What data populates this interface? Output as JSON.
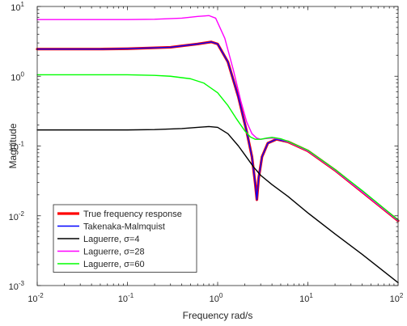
{
  "chart_data": {
    "type": "line",
    "title": "",
    "xlabel": "Frequency rad/s",
    "ylabel": "Magnitude",
    "xscale": "log",
    "yscale": "log",
    "xlim": [
      0.01,
      100
    ],
    "ylim": [
      0.001,
      10
    ],
    "grid": false,
    "legend_position": "bottom-left",
    "x_tick_labels": [
      {
        "base": "10",
        "exp": "-2"
      },
      {
        "base": "10",
        "exp": "-1"
      },
      {
        "base": "10",
        "exp": "0"
      },
      {
        "base": "10",
        "exp": "1"
      },
      {
        "base": "10",
        "exp": "2"
      }
    ],
    "y_tick_labels": [
      {
        "base": "10",
        "exp": "-3"
      },
      {
        "base": "10",
        "exp": "-2"
      },
      {
        "base": "10",
        "exp": "-1"
      },
      {
        "base": "10",
        "exp": "0"
      },
      {
        "base": "10",
        "exp": "1"
      }
    ],
    "series": [
      {
        "name": "True frequency response",
        "color": "#ff0000",
        "x": [
          0.01,
          0.05,
          0.1,
          0.3,
          0.6,
          0.85,
          1.0,
          1.3,
          1.7,
          2.1,
          2.4,
          2.6,
          2.72,
          2.85,
          3.1,
          3.6,
          4.5,
          6,
          10,
          20,
          40,
          100
        ],
        "y": [
          2.45,
          2.45,
          2.48,
          2.6,
          2.9,
          3.1,
          2.9,
          1.6,
          0.5,
          0.16,
          0.07,
          0.03,
          0.017,
          0.035,
          0.07,
          0.11,
          0.125,
          0.115,
          0.085,
          0.045,
          0.022,
          0.0085
        ]
      },
      {
        "name": "Takenaka-Malmquist",
        "color": "#0000ff",
        "x": [
          0.01,
          0.05,
          0.1,
          0.3,
          0.6,
          0.85,
          1.0,
          1.3,
          1.7,
          2.1,
          2.4,
          2.6,
          2.72,
          2.85,
          3.1,
          3.6,
          4.5,
          6,
          10,
          20,
          40,
          100
        ],
        "y": [
          2.45,
          2.45,
          2.48,
          2.6,
          2.9,
          3.1,
          2.9,
          1.6,
          0.5,
          0.16,
          0.07,
          0.03,
          0.017,
          0.035,
          0.07,
          0.11,
          0.125,
          0.115,
          0.085,
          0.045,
          0.022,
          0.0085
        ]
      },
      {
        "name": "Laguerre, σ=4",
        "color": "#000000",
        "x": [
          0.01,
          0.05,
          0.1,
          0.2,
          0.4,
          0.6,
          0.8,
          1.0,
          1.3,
          1.7,
          2.0,
          2.5,
          3,
          4,
          6,
          10,
          20,
          40,
          100
        ],
        "y": [
          0.17,
          0.17,
          0.17,
          0.172,
          0.178,
          0.185,
          0.19,
          0.185,
          0.15,
          0.1,
          0.075,
          0.05,
          0.038,
          0.028,
          0.019,
          0.011,
          0.0055,
          0.0028,
          0.0011
        ]
      },
      {
        "name": "Laguerre, σ=28",
        "color": "#ff00ff",
        "x": [
          0.01,
          0.05,
          0.1,
          0.2,
          0.4,
          0.6,
          0.8,
          0.95,
          1.2,
          1.5,
          1.8,
          2.1,
          2.4,
          2.7,
          3.0,
          3.4,
          4.0,
          5,
          6,
          10,
          20,
          40,
          100
        ],
        "y": [
          6.5,
          6.5,
          6.5,
          6.55,
          6.8,
          7.2,
          7.4,
          6.8,
          3.5,
          1.2,
          0.45,
          0.22,
          0.15,
          0.13,
          0.125,
          0.128,
          0.13,
          0.125,
          0.115,
          0.085,
          0.045,
          0.022,
          0.0085
        ]
      },
      {
        "name": "Laguerre, σ=60",
        "color": "#00ff00",
        "x": [
          0.01,
          0.05,
          0.1,
          0.2,
          0.3,
          0.5,
          0.7,
          1.0,
          1.3,
          1.6,
          2.0,
          2.3,
          2.6,
          3.0,
          3.5,
          4.0,
          4.5,
          5,
          6,
          10,
          20,
          40,
          100
        ],
        "y": [
          1.05,
          1.05,
          1.05,
          1.03,
          1.0,
          0.92,
          0.8,
          0.58,
          0.38,
          0.25,
          0.165,
          0.135,
          0.125,
          0.125,
          0.13,
          0.133,
          0.13,
          0.127,
          0.117,
          0.087,
          0.046,
          0.023,
          0.0087
        ]
      }
    ]
  }
}
